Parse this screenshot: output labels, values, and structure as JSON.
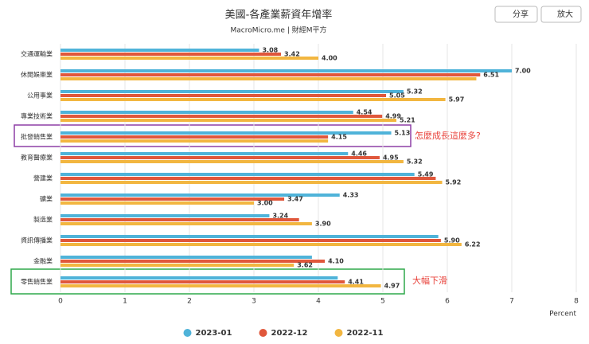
{
  "toolbar": {
    "share": "分享",
    "zoom": "放大"
  },
  "chart_data": {
    "type": "bar",
    "orientation": "horizontal",
    "title": "美國-各產業薪資年增率",
    "subtitle": "MacroMicro.me | 財經M平方",
    "categories": [
      "交通運輸業",
      "休閒娛樂業",
      "公用事業",
      "專業技術業",
      "批發銷售業",
      "教育醫療業",
      "營建業",
      "礦業",
      "製造業",
      "資訊傳播業",
      "金融業",
      "零售銷售業"
    ],
    "series": [
      {
        "name": "2023-01",
        "color": "#4fb3d9",
        "values": [
          3.08,
          7.0,
          5.32,
          4.54,
          5.13,
          4.46,
          5.49,
          4.33,
          3.24,
          5.86,
          3.9,
          4.3
        ],
        "value_labels": [
          "3.08",
          "7.00",
          "5.32",
          "4.54",
          "5.13",
          "4.46",
          "5.49",
          "4.33",
          "3.24",
          null,
          null,
          null
        ]
      },
      {
        "name": "2022-12",
        "color": "#e0573b",
        "values": [
          3.42,
          6.51,
          5.05,
          4.99,
          4.15,
          4.95,
          5.82,
          3.47,
          3.7,
          5.9,
          4.1,
          4.41
        ],
        "value_labels": [
          "3.42",
          "6.51",
          "5.05",
          "4.99",
          "4.15",
          "4.95",
          null,
          "3.47",
          null,
          "5.90",
          "4.10",
          "4.41"
        ]
      },
      {
        "name": "2022-11",
        "color": "#f2b640",
        "values": [
          4.0,
          6.45,
          5.97,
          5.21,
          4.15,
          5.32,
          5.92,
          3.0,
          3.9,
          6.22,
          3.62,
          4.97
        ],
        "value_labels": [
          "4.00",
          null,
          "5.97",
          "5.21",
          null,
          "5.32",
          "5.92",
          "3.00",
          "3.90",
          "6.22",
          "3.62",
          "4.97"
        ]
      }
    ],
    "xlim": [
      0,
      8
    ],
    "xticks": [
      0,
      1,
      2,
      3,
      4,
      5,
      6,
      7,
      8
    ],
    "xlabel": "Percent",
    "grid": true,
    "annotations": [
      "怎麼成長這麼多?",
      "大幅下滑"
    ]
  }
}
